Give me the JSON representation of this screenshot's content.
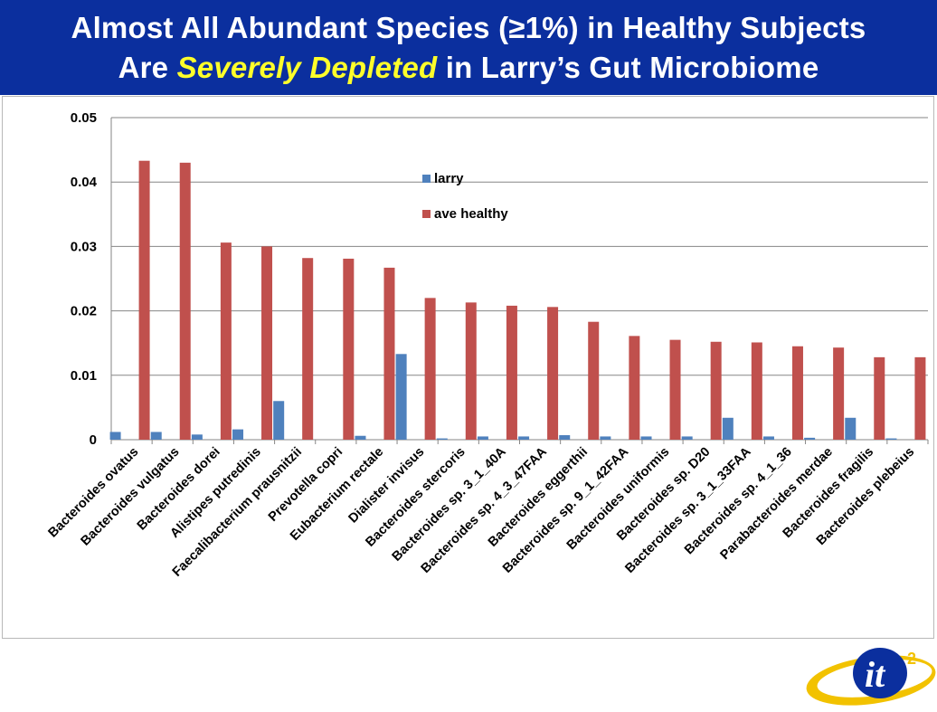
{
  "title": {
    "line1": "Almost All Abundant Species (≥1%) in Healthy Subjects",
    "line2_pre": "Are ",
    "line2_highlight": "Severely Depleted",
    "line2_post": " in Larry’s Gut Microbiome"
  },
  "colors": {
    "title_bg": "#0b2f9e",
    "title_text": "#ffffff",
    "highlight": "#ffff2a",
    "larry": "#4f81bd",
    "ave_healthy": "#c0504d"
  },
  "logo": {
    "text": "it",
    "superscript": "2"
  },
  "chart_data": {
    "type": "bar",
    "title": "",
    "xlabel": "",
    "ylabel": "",
    "ylim": [
      0,
      0.05
    ],
    "yticks": [
      "0",
      "0.01",
      "0.02",
      "0.03",
      "0.04",
      "0.05"
    ],
    "grid": true,
    "legend_position": "upper-center",
    "categories": [
      "Bacteroides ovatus",
      "Bacteroides vulgatus",
      "Bacteroides dorei",
      "Alistipes putredinis",
      "Faecalibacterium prausnitzii",
      "Prevotella copri",
      "Eubacterium rectale",
      "Dialister invisus",
      "Bacteroides stercoris",
      "Bacteroides sp. 3_1_40A",
      "Bacteroides sp. 4_3_47FAA",
      "Bacteroides eggerthii",
      "Bacteroides sp. 9_1_42FAA",
      "Bacteroides uniformis",
      "Bacteroides sp. D20",
      "Bacteroides sp. 3_1_33FAA",
      "Bacteroides sp. 4_1_36",
      "Parabacteroides merdae",
      "Bacteroides fragilis",
      "Bacteroides plebeius"
    ],
    "series": [
      {
        "name": "larry",
        "values": [
          0.0012,
          0.0012,
          0.0008,
          0.0016,
          0.006,
          0.0,
          0.0006,
          0.0133,
          0.0002,
          0.0005,
          0.0005,
          0.0007,
          0.0005,
          0.0005,
          0.0005,
          0.0034,
          0.0005,
          0.0003,
          0.0034,
          0.0002
        ]
      },
      {
        "name": "ave healthy",
        "values": [
          0.0433,
          0.043,
          0.0306,
          0.03,
          0.0282,
          0.0281,
          0.0267,
          0.022,
          0.0213,
          0.0208,
          0.0206,
          0.0183,
          0.0161,
          0.0155,
          0.0152,
          0.0151,
          0.0145,
          0.0143,
          0.0128,
          0.0128
        ]
      }
    ]
  }
}
